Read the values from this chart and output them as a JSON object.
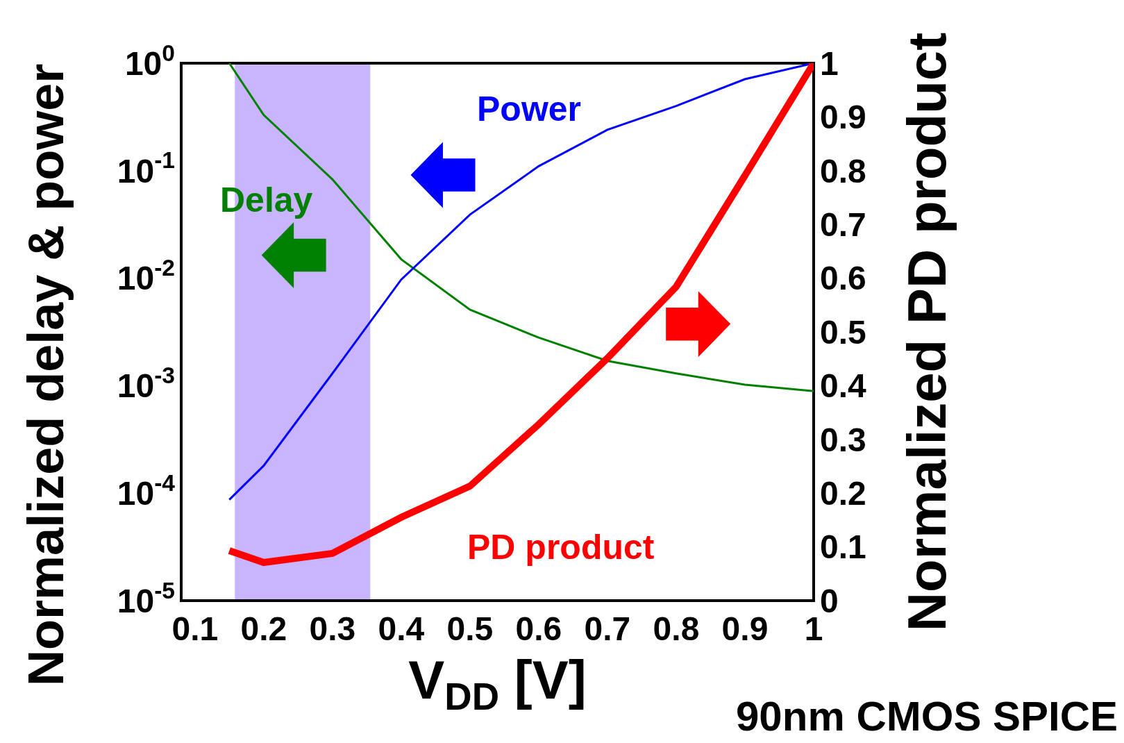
{
  "chart_data": {
    "type": "line",
    "xlabel": "V$_{DD}$ [V]",
    "ylabel": "Normalized delay & power",
    "y2label": "Normalized PD product",
    "x": [
      0.15,
      0.2,
      0.3,
      0.4,
      0.5,
      0.6,
      0.7,
      0.8,
      0.9,
      1.0
    ],
    "series": [
      {
        "name": "Delay",
        "color": "#008000",
        "values": [
          1,
          0.33,
          0.083,
          0.015,
          0.0051,
          0.0028,
          0.0017,
          0.0013,
          0.00102,
          0.00089
        ]
      },
      {
        "name": "Power",
        "color": "#0000ff",
        "values": [
          8.7e-05,
          0.00018,
          0.0013,
          0.0097,
          0.039,
          0.11,
          0.24,
          0.4,
          0.71,
          1
        ]
      },
      {
        "name": "PD product",
        "color": "#ff0000",
        "axis": "y2",
        "values": [
          0.093,
          0.071,
          0.088,
          0.155,
          0.213,
          0.328,
          0.451,
          0.584,
          0.791,
          1.0
        ]
      }
    ],
    "log": "y",
    "xlim": [
      0.08,
      1
    ],
    "xticks": [
      0.1,
      0.2,
      0.3,
      0.4,
      0.5,
      0.6,
      0.7,
      0.8,
      0.9,
      1
    ],
    "ylim": [
      1e-05,
      1
    ],
    "yticks": [
      {
        "value": 1e-05,
        "label": "10$^{-5}$"
      },
      {
        "value": 0.0001,
        "label": "10$^{-4}$"
      },
      {
        "value": 0.001,
        "label": "10$^{-3}$"
      },
      {
        "value": 0.01,
        "label": "10$^{-2}$"
      },
      {
        "value": 0.1,
        "label": "10$^{-1}$"
      },
      {
        "value": 1,
        "label": "10$^{0}$"
      }
    ],
    "y2lim": [
      0,
      1
    ],
    "y2ticks": [
      0,
      0.1,
      0.2,
      0.3,
      0.4,
      0.5,
      0.6,
      0.7,
      0.8,
      0.9,
      1
    ],
    "bands": [
      {
        "axis": "x",
        "from": 0.158,
        "to": 0.355,
        "color": "#b59bff"
      }
    ],
    "annotations": [
      "90nm CMOS SPICE"
    ],
    "grid": false,
    "legend": false,
    "marker": "none",
    "line_style": "solid"
  }
}
